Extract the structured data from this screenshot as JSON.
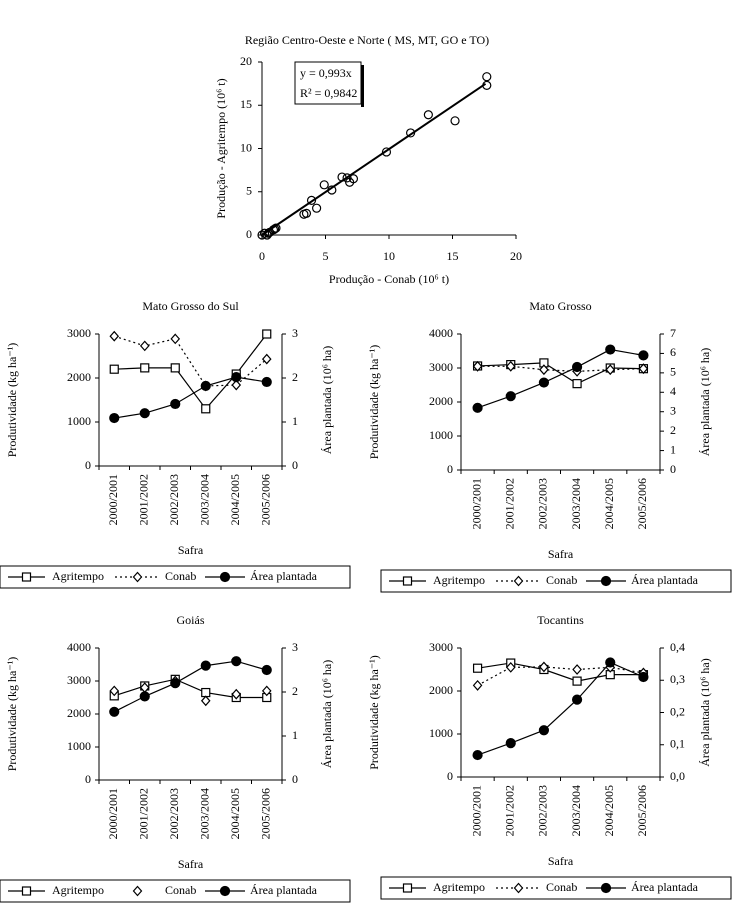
{
  "chart_data": [
    {
      "type": "scatter",
      "title": "Região Centro-Oeste e Norte ( MS, MT, GO e TO)",
      "x_label": "Produção - Conab (10⁶ t)",
      "y_label": "Produção - Agritempo (10⁶ t)",
      "x": [
        0,
        0.2,
        0.4,
        0.5,
        0.6,
        0.9,
        1.0,
        1.1,
        3.3,
        3.5,
        3.9,
        4.3,
        4.9,
        5.5,
        6.3,
        6.7,
        6.9,
        7.2,
        9.8,
        11.7,
        13.1,
        15.2,
        17.7,
        17.7
      ],
      "values": [
        0,
        0.2,
        0.0,
        0.2,
        0.3,
        0.6,
        0.7,
        0.8,
        2.4,
        2.5,
        4.0,
        3.1,
        5.8,
        5.2,
        6.7,
        6.6,
        6.1,
        6.5,
        9.6,
        11.8,
        13.9,
        13.2,
        18.3,
        17.3
      ],
      "color": "#000000",
      "trendline": {
        "x": [
          0,
          17.6
        ],
        "values": [
          0,
          17.48
        ]
      },
      "annotations": [
        "y = 0,993x",
        "R² = 0,9842"
      ],
      "xlim": [
        0,
        20
      ],
      "xticks": [
        0,
        5,
        10,
        15,
        20
      ],
      "ylim": [
        0,
        20
      ],
      "yticks": [
        0,
        5,
        10,
        15,
        20
      ]
    },
    {
      "type": "line",
      "title": "Mato Grosso do Sul",
      "x_label": "Safra",
      "y_label": "Produtividade (kg ha⁻¹)",
      "y2_label": "Área plantada (10⁶ ha)",
      "categories": [
        "2000/2001",
        "2001/2002",
        "2002/2003",
        "2003/2004",
        "2004/2005",
        "2005/2006"
      ],
      "series": [
        {
          "name": "Agritempo",
          "color": "#000000",
          "marker": "square",
          "dash": "solid",
          "values": [
            2200,
            2230,
            2230,
            1300,
            2090,
            3000
          ]
        },
        {
          "name": "Conab",
          "color": "#000000",
          "marker": "diamond",
          "dash": "dotted",
          "values": [
            2950,
            2730,
            2890,
            1820,
            1840,
            2430
          ]
        },
        {
          "name": "Área plantada",
          "color": "#000000",
          "marker": "circle",
          "dash": "solid",
          "axis": "y2",
          "values": [
            1.09,
            1.2,
            1.41,
            1.82,
            2.02,
            1.91
          ]
        }
      ],
      "ylim": [
        0,
        3000
      ],
      "yticks": [
        0,
        1000,
        2000,
        3000
      ],
      "y2lim": [
        0,
        3
      ],
      "y2ticks": [
        0,
        1,
        2,
        3
      ]
    },
    {
      "type": "line",
      "title": "Mato Grosso",
      "x_label": "Safra",
      "y_label": "Produtividade (kg ha⁻¹)",
      "y2_label": "Área plantada (10⁶ ha)",
      "categories": [
        "2000/2001",
        "2001/2002",
        "2002/2003",
        "2003/2004",
        "2004/2005",
        "2005/2006"
      ],
      "series": [
        {
          "name": "Agritempo",
          "color": "#000000",
          "marker": "square",
          "dash": "solid",
          "values": [
            3060,
            3100,
            3150,
            2540,
            3000,
            2980
          ]
        },
        {
          "name": "Conab",
          "color": "#000000",
          "marker": "diamond",
          "dash": "dotted",
          "values": [
            3050,
            3050,
            2950,
            2900,
            2950,
            2980
          ]
        },
        {
          "name": "Área plantada",
          "color": "#000000",
          "marker": "circle",
          "dash": "solid",
          "axis": "y2",
          "values": [
            3.2,
            3.8,
            4.5,
            5.3,
            6.2,
            5.9
          ]
        }
      ],
      "ylim": [
        0,
        4000
      ],
      "yticks": [
        0,
        1000,
        2000,
        3000,
        4000
      ],
      "y2lim": [
        0,
        7
      ],
      "y2ticks": [
        0,
        1,
        2,
        3,
        4,
        5,
        6,
        7
      ]
    },
    {
      "type": "line",
      "title": "Goiás",
      "x_label": "Safra",
      "y_label": "Produtividade (kg ha⁻¹)",
      "y2_label": "Área plantada (10⁶ ha)",
      "categories": [
        "2000/2001",
        "2001/2002",
        "2002/2003",
        "2003/2004",
        "2004/2005",
        "2005/2006"
      ],
      "series": [
        {
          "name": "Agritempo",
          "color": "#000000",
          "marker": "square",
          "dash": "solid",
          "values": [
            2550,
            2850,
            3050,
            2650,
            2500,
            2500
          ]
        },
        {
          "name": "Conab",
          "color": "#000000",
          "marker": "diamond",
          "dash": "none",
          "values": [
            2700,
            2800,
            3000,
            2400,
            2600,
            2700
          ]
        },
        {
          "name": "Área plantada",
          "color": "#000000",
          "marker": "circle",
          "dash": "solid",
          "axis": "y2",
          "values": [
            1.55,
            1.9,
            2.2,
            2.6,
            2.7,
            2.5
          ]
        }
      ],
      "ylim": [
        0,
        4000
      ],
      "yticks": [
        0,
        1000,
        2000,
        3000,
        4000
      ],
      "y2lim": [
        0,
        3
      ],
      "y2ticks": [
        0,
        1,
        2,
        3
      ]
    },
    {
      "type": "line",
      "title": "Tocantins",
      "x_label": "Safra",
      "y_label": "Produtividade (kg ha⁻¹)",
      "y2_label": "Área plantada (10⁶ ha)",
      "categories": [
        "2000/2001",
        "2001/2002",
        "2002/2003",
        "2003/2004",
        "2004/2005",
        "2005/2006"
      ],
      "series": [
        {
          "name": "Agritempo",
          "color": "#000000",
          "marker": "square",
          "dash": "solid",
          "values": [
            2530,
            2650,
            2500,
            2230,
            2380,
            2380
          ]
        },
        {
          "name": "Conab",
          "color": "#000000",
          "marker": "diamond",
          "dash": "dotted",
          "values": [
            2130,
            2550,
            2560,
            2500,
            2550,
            2420
          ]
        },
        {
          "name": "Área plantada",
          "color": "#000000",
          "marker": "circle",
          "dash": "solid",
          "axis": "y2",
          "values": [
            0.068,
            0.105,
            0.145,
            0.24,
            0.355,
            0.31
          ]
        }
      ],
      "ylim": [
        0,
        3000
      ],
      "yticks": [
        0,
        1000,
        2000,
        3000
      ],
      "y2lim": [
        0,
        0.4
      ],
      "y2ticks": [
        {
          "value": 0,
          "label": "0,0"
        },
        {
          "value": 0.1,
          "label": "0,1"
        },
        {
          "value": 0.2,
          "label": "0,2"
        },
        {
          "value": 0.3,
          "label": "0,3"
        },
        {
          "value": 0.4,
          "label": "0,4"
        }
      ]
    }
  ]
}
